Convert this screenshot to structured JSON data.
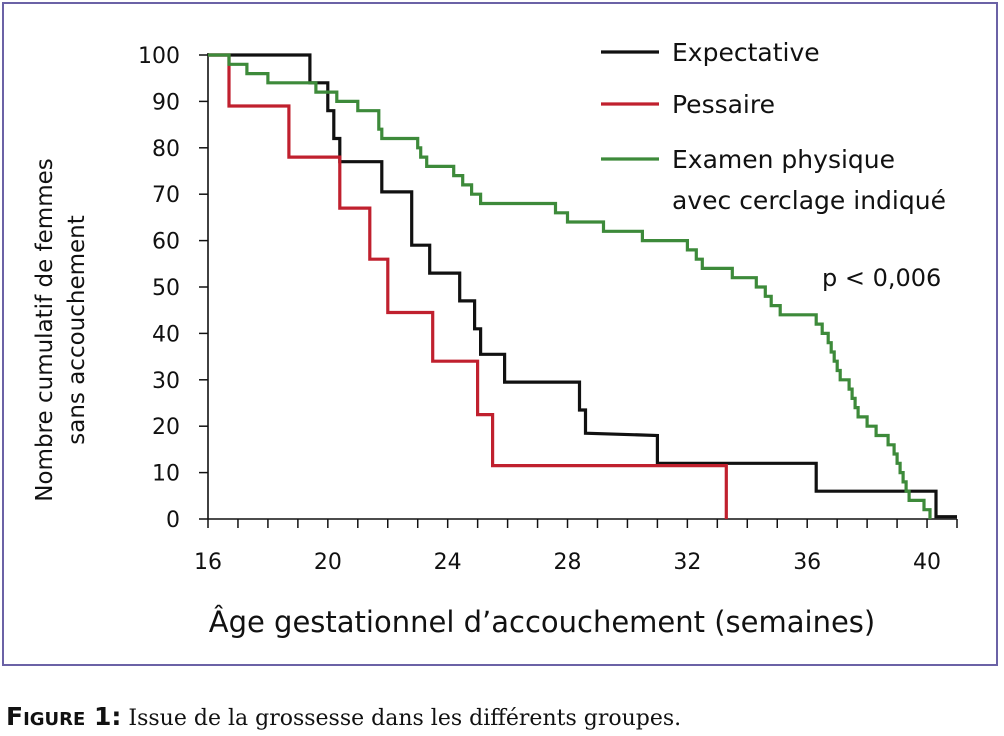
{
  "caption": {
    "label": "Figure 1:",
    "text": " Issue de la grossesse dans les différents groupes."
  },
  "chart_data": {
    "type": "line",
    "step": true,
    "xlabel": "Âge gestationnel d’accouchement (semaines)",
    "ylabel_lines": [
      "Nombre cumulatif de femmes",
      "sans accouchement"
    ],
    "xlim": [
      16,
      41
    ],
    "ylim": [
      0,
      100
    ],
    "xticks": [
      16,
      20,
      24,
      28,
      32,
      36,
      40
    ],
    "yticks": [
      0,
      10,
      20,
      30,
      40,
      50,
      60,
      70,
      80,
      90,
      100
    ],
    "annotation": "p < 0,006",
    "legend_position": "top-right",
    "series": [
      {
        "name": "Expectative",
        "color": "#111111",
        "points": [
          [
            16,
            100
          ],
          [
            19.4,
            100
          ],
          [
            19.4,
            94
          ],
          [
            20,
            94
          ],
          [
            20,
            88
          ],
          [
            20.2,
            88
          ],
          [
            20.2,
            82
          ],
          [
            20.4,
            82
          ],
          [
            20.4,
            77
          ],
          [
            21.8,
            77
          ],
          [
            21.8,
            70.5
          ],
          [
            22.8,
            70.5
          ],
          [
            22.8,
            59
          ],
          [
            23.4,
            59
          ],
          [
            23.4,
            53
          ],
          [
            24.4,
            53
          ],
          [
            24.4,
            47
          ],
          [
            24.9,
            47
          ],
          [
            24.9,
            41
          ],
          [
            25.1,
            41
          ],
          [
            25.1,
            35.5
          ],
          [
            25.9,
            35.5
          ],
          [
            25.9,
            29.5
          ],
          [
            28.4,
            29.5
          ],
          [
            28.4,
            23.5
          ],
          [
            28.6,
            23.5
          ],
          [
            28.6,
            18.5
          ],
          [
            31,
            18
          ],
          [
            31,
            12
          ],
          [
            36.3,
            12
          ],
          [
            36.3,
            6
          ],
          [
            40.3,
            6
          ],
          [
            40.3,
            0.5
          ],
          [
            41,
            0.5
          ]
        ]
      },
      {
        "name": "Pessaire",
        "color": "#c0202e",
        "points": [
          [
            16,
            100
          ],
          [
            16.7,
            100
          ],
          [
            16.7,
            89
          ],
          [
            18.7,
            89
          ],
          [
            18.7,
            78
          ],
          [
            20.4,
            78
          ],
          [
            20.4,
            67
          ],
          [
            21.4,
            67
          ],
          [
            21.4,
            56
          ],
          [
            22,
            56
          ],
          [
            22,
            44.5
          ],
          [
            23.5,
            44.5
          ],
          [
            23.5,
            34
          ],
          [
            25,
            34
          ],
          [
            25,
            22.5
          ],
          [
            25.5,
            22.5
          ],
          [
            25.5,
            11.5
          ],
          [
            33.3,
            11.5
          ],
          [
            33.3,
            0
          ]
        ]
      },
      {
        "name": "Examen physique avec cerclage indiqué",
        "name_lines": [
          "Examen physique",
          "avec cerclage indiqué"
        ],
        "color": "#3d8a3a",
        "points": [
          [
            16,
            100
          ],
          [
            16.7,
            100
          ],
          [
            16.7,
            98
          ],
          [
            17.3,
            98
          ],
          [
            17.3,
            96
          ],
          [
            18,
            96
          ],
          [
            18,
            94
          ],
          [
            19.6,
            94
          ],
          [
            19.6,
            92
          ],
          [
            20.3,
            92
          ],
          [
            20.3,
            90
          ],
          [
            21,
            90
          ],
          [
            21,
            88
          ],
          [
            21.7,
            88
          ],
          [
            21.7,
            84
          ],
          [
            21.8,
            84
          ],
          [
            21.8,
            82
          ],
          [
            23,
            82
          ],
          [
            23,
            80
          ],
          [
            23.1,
            80
          ],
          [
            23.1,
            78
          ],
          [
            23.3,
            78
          ],
          [
            23.3,
            76
          ],
          [
            24.2,
            76
          ],
          [
            24.2,
            74
          ],
          [
            24.5,
            74
          ],
          [
            24.5,
            72
          ],
          [
            24.8,
            72
          ],
          [
            24.8,
            70
          ],
          [
            25.1,
            70
          ],
          [
            25.1,
            68
          ],
          [
            27.6,
            68
          ],
          [
            27.6,
            66
          ],
          [
            28,
            66
          ],
          [
            28,
            64
          ],
          [
            29.2,
            64
          ],
          [
            29.2,
            62
          ],
          [
            30.5,
            62
          ],
          [
            30.5,
            60
          ],
          [
            32,
            60
          ],
          [
            32,
            58
          ],
          [
            32.3,
            58
          ],
          [
            32.3,
            56
          ],
          [
            32.5,
            56
          ],
          [
            32.5,
            54
          ],
          [
            33.5,
            54
          ],
          [
            33.5,
            52
          ],
          [
            34.3,
            52
          ],
          [
            34.3,
            50
          ],
          [
            34.6,
            50
          ],
          [
            34.6,
            48
          ],
          [
            34.8,
            48
          ],
          [
            34.8,
            46
          ],
          [
            35.1,
            46
          ],
          [
            35.1,
            44
          ],
          [
            36.3,
            44
          ],
          [
            36.3,
            42
          ],
          [
            36.5,
            42
          ],
          [
            36.5,
            40
          ],
          [
            36.7,
            40
          ],
          [
            36.7,
            38
          ],
          [
            36.8,
            38
          ],
          [
            36.8,
            36
          ],
          [
            36.9,
            36
          ],
          [
            36.9,
            34
          ],
          [
            37,
            34
          ],
          [
            37,
            32
          ],
          [
            37.1,
            32
          ],
          [
            37.1,
            30
          ],
          [
            37.4,
            30
          ],
          [
            37.4,
            28
          ],
          [
            37.5,
            28
          ],
          [
            37.5,
            26
          ],
          [
            37.6,
            26
          ],
          [
            37.6,
            24
          ],
          [
            37.7,
            24
          ],
          [
            37.7,
            22
          ],
          [
            38,
            22
          ],
          [
            38,
            20
          ],
          [
            38.3,
            20
          ],
          [
            38.3,
            18
          ],
          [
            38.7,
            18
          ],
          [
            38.7,
            16
          ],
          [
            38.9,
            16
          ],
          [
            38.9,
            14
          ],
          [
            39,
            14
          ],
          [
            39,
            12
          ],
          [
            39.1,
            12
          ],
          [
            39.1,
            10
          ],
          [
            39.2,
            10
          ],
          [
            39.2,
            8
          ],
          [
            39.3,
            8
          ],
          [
            39.3,
            6
          ],
          [
            39.4,
            6
          ],
          [
            39.4,
            4
          ],
          [
            39.9,
            4
          ],
          [
            39.9,
            2
          ],
          [
            40.1,
            2
          ],
          [
            40.1,
            0
          ]
        ]
      }
    ]
  }
}
